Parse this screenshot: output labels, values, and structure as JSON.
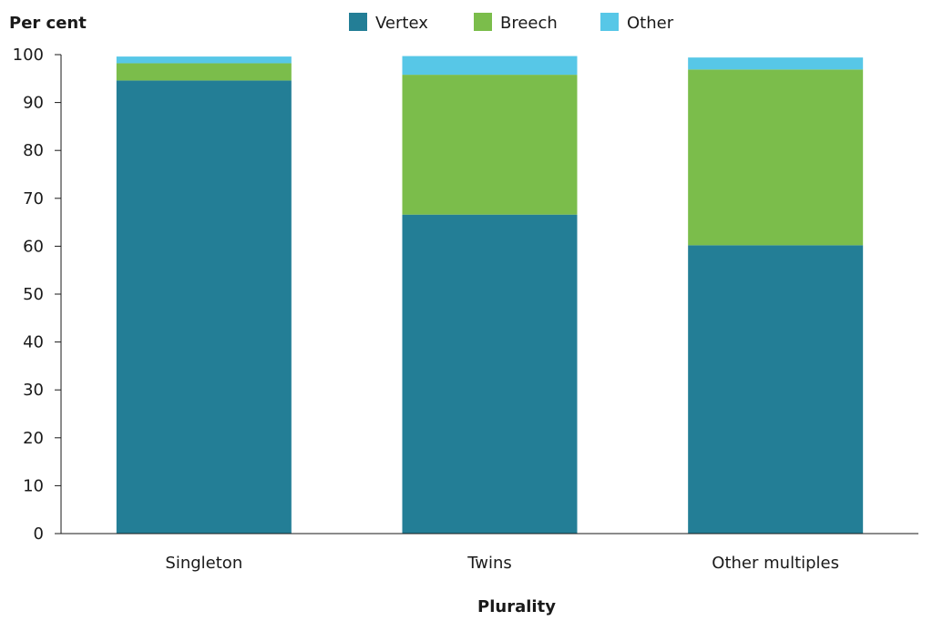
{
  "chart_data": {
    "type": "bar",
    "stacked": true,
    "ylabel": "Per cent",
    "xlabel": "Plurality",
    "ylim": [
      0,
      100
    ],
    "yticks": [
      0,
      10,
      20,
      30,
      40,
      50,
      60,
      70,
      80,
      90,
      100
    ],
    "categories": [
      "Singleton",
      "Twins",
      "Other multiples"
    ],
    "series": [
      {
        "name": "Vertex",
        "color": "#237e96",
        "values": [
          94.6,
          66.6,
          60.2
        ]
      },
      {
        "name": "Breech",
        "color": "#7bbd4b",
        "values": [
          3.6,
          29.2,
          36.7
        ]
      },
      {
        "name": "Other",
        "color": "#57c7e7",
        "values": [
          1.4,
          3.9,
          2.5
        ]
      }
    ],
    "legend_position": "top",
    "grid": false
  }
}
